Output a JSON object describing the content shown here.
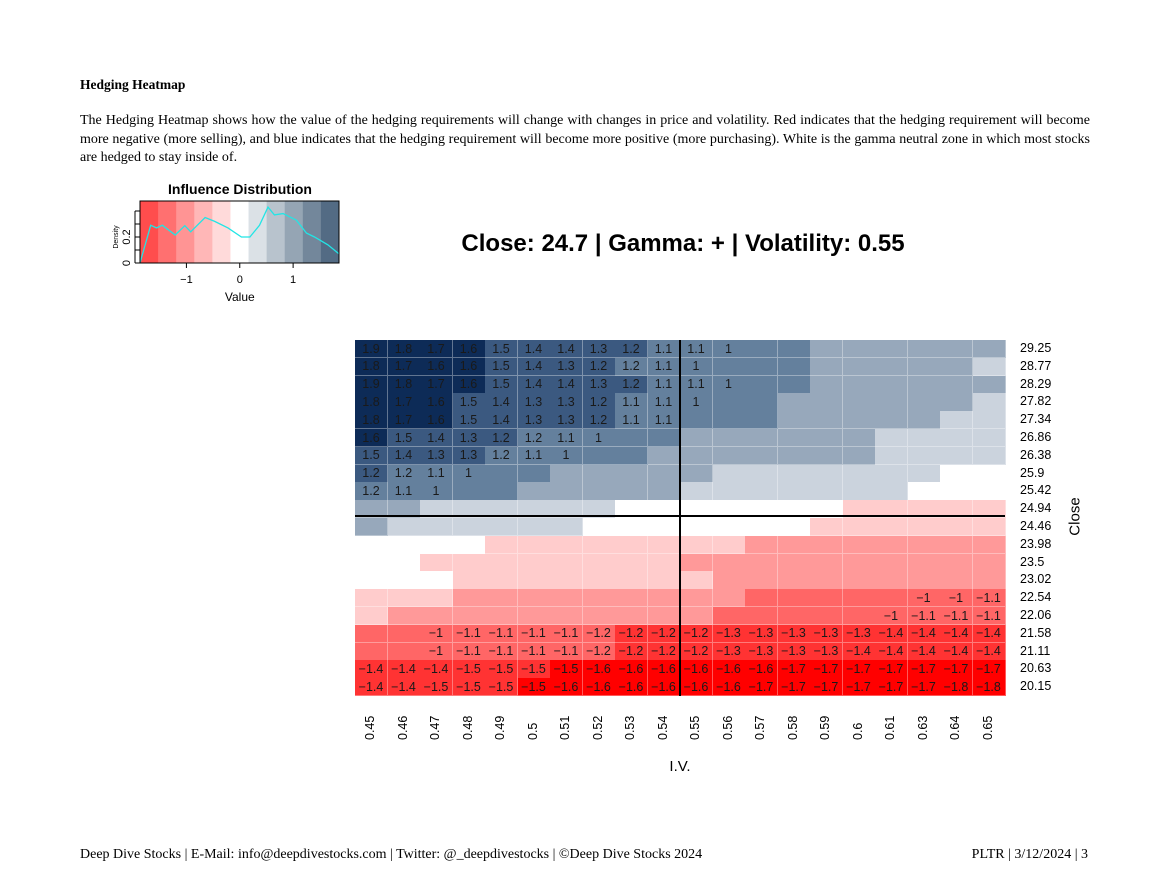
{
  "document": {
    "section_title": "Hedging Heatmap",
    "paragraph": "The Hedging Heatmap shows how the value of the hedging requirements will change with changes in price and volatility. Red indicates that the hedging requirement will become more negative (more selling), and blue indicates that the hedging requirement will become more positive (more purchasing). White is the gamma neutral zone in which most stocks are hedged to stay inside of."
  },
  "footer": {
    "left": "Deep Dive Stocks | E-Mail:  info@deepdivestocks.com | Twitter:  @_deepdivestocks | ©Deep Dive Stocks 2024",
    "right": "PLTR | 3/12/2024 | 3"
  },
  "chart_data": [
    {
      "type": "area",
      "title": "Influence Distribution",
      "xlabel": "Value",
      "ylabel": "Density",
      "xlim": [
        -1.87,
        1.86
      ],
      "ylim": [
        0,
        0.45
      ],
      "xticks": [
        "−1",
        "0",
        "1"
      ],
      "yticks": [
        "0",
        "0.2"
      ],
      "x": [
        -1.87,
        -1.67,
        -1.56,
        -1.45,
        -1.21,
        -1.03,
        -0.92,
        -0.65,
        -0.47,
        -0.22,
        0.03,
        0.19,
        0.37,
        0.53,
        0.65,
        0.81,
        1.06,
        1.25,
        1.4,
        1.65,
        1.86
      ],
      "y": [
        0.0,
        0.29,
        0.27,
        0.29,
        0.215,
        0.287,
        0.24,
        0.35,
        0.32,
        0.27,
        0.2,
        0.2,
        0.29,
        0.43,
        0.37,
        0.38,
        0.33,
        0.23,
        0.2,
        0.14,
        0.07
      ],
      "line_color": "#22e5e5",
      "band_colors": [
        "#ff4d4d",
        "#ff7070",
        "#ff9494",
        "#ffb7b7",
        "#ffdada",
        "#ffffff",
        "#dbe1e6",
        "#b8c3cd",
        "#95a5b4",
        "#73879b",
        "#536b84"
      ]
    },
    {
      "type": "heatmap",
      "title": "Close: 24.7 | Gamma: + | Volatility: 0.55",
      "xlabel": "I.V.",
      "ylabel": "Close",
      "current_close_row": "24.46",
      "current_iv_col": "0.55",
      "x": [
        "0.45",
        "0.46",
        "0.47",
        "0.48",
        "0.49",
        "0.5",
        "0.51",
        "0.52",
        "0.53",
        "0.54",
        "0.55",
        "0.56",
        "0.57",
        "0.58",
        "0.59",
        "0.6",
        "0.61",
        "0.63",
        "0.64",
        "0.65"
      ],
      "y": [
        "29.25",
        "28.77",
        "28.29",
        "27.82",
        "27.34",
        "26.86",
        "26.38",
        "25.9",
        "25.42",
        "24.94",
        "24.46",
        "23.98",
        "23.5",
        "23.02",
        "22.54",
        "22.06",
        "21.58",
        "21.11",
        "20.63",
        "20.15"
      ],
      "level_colors": {
        "5": "#0d2b57",
        "4": "#3b5980",
        "3": "#64809d",
        "2": "#97a8bb",
        "1": "#cbd3dd",
        "0": "#ffffff",
        "-1": "#ffcccc",
        "-2": "#ff9999",
        "-3": "#ff6666",
        "-4": "#ff3333",
        "-5": "#ff0000"
      },
      "levels": [
        [
          5,
          5,
          5,
          5,
          4,
          4,
          4,
          4,
          4,
          3,
          3,
          3,
          3,
          3,
          2,
          2,
          2,
          2,
          2,
          2
        ],
        [
          5,
          5,
          5,
          5,
          4,
          4,
          4,
          4,
          3,
          3,
          3,
          3,
          3,
          3,
          2,
          2,
          2,
          2,
          2,
          1
        ],
        [
          5,
          5,
          5,
          5,
          4,
          4,
          4,
          4,
          4,
          3,
          3,
          3,
          3,
          3,
          2,
          2,
          2,
          2,
          2,
          2
        ],
        [
          5,
          5,
          5,
          4,
          4,
          4,
          4,
          4,
          3,
          3,
          3,
          3,
          3,
          2,
          2,
          2,
          2,
          2,
          2,
          1
        ],
        [
          5,
          5,
          5,
          4,
          4,
          4,
          4,
          4,
          3,
          3,
          3,
          3,
          3,
          2,
          2,
          2,
          2,
          2,
          1,
          1
        ],
        [
          5,
          4,
          4,
          4,
          4,
          3,
          3,
          3,
          3,
          3,
          2,
          2,
          2,
          2,
          2,
          2,
          1,
          1,
          1,
          1
        ],
        [
          4,
          4,
          4,
          4,
          3,
          3,
          3,
          3,
          3,
          2,
          2,
          2,
          2,
          2,
          2,
          2,
          1,
          1,
          1,
          1
        ],
        [
          4,
          3,
          3,
          3,
          3,
          3,
          2,
          2,
          2,
          2,
          2,
          1,
          1,
          1,
          1,
          1,
          1,
          1,
          0,
          0
        ],
        [
          3,
          3,
          3,
          3,
          3,
          2,
          2,
          2,
          2,
          2,
          1,
          1,
          1,
          1,
          1,
          1,
          1,
          0,
          0,
          0
        ],
        [
          2,
          2,
          1,
          1,
          1,
          1,
          1,
          1,
          0,
          0,
          0,
          0,
          0,
          0,
          0,
          -1,
          -1,
          -1,
          -1,
          -1
        ],
        [
          2,
          1,
          1,
          1,
          1,
          1,
          1,
          0,
          0,
          0,
          0,
          0,
          0,
          0,
          -1,
          -1,
          -1,
          -1,
          -1,
          -1
        ],
        [
          0,
          0,
          0,
          0,
          -1,
          -1,
          -1,
          -1,
          -1,
          -1,
          -1,
          -1,
          -2,
          -2,
          -2,
          -2,
          -2,
          -2,
          -2,
          -2
        ],
        [
          0,
          0,
          -1,
          -1,
          -1,
          -1,
          -1,
          -1,
          -1,
          -1,
          -2,
          -2,
          -2,
          -2,
          -2,
          -2,
          -2,
          -2,
          -2,
          -2
        ],
        [
          0,
          0,
          0,
          -1,
          -1,
          -1,
          -1,
          -1,
          -1,
          -1,
          -1,
          -2,
          -2,
          -2,
          -2,
          -2,
          -2,
          -2,
          -2,
          -2
        ],
        [
          -1,
          -1,
          -1,
          -2,
          -2,
          -2,
          -2,
          -2,
          -2,
          -2,
          -2,
          -2,
          -3,
          -3,
          -3,
          -3,
          -3,
          -3,
          -3,
          -3
        ],
        [
          -1,
          -2,
          -2,
          -2,
          -2,
          -2,
          -2,
          -2,
          -2,
          -2,
          -2,
          -3,
          -3,
          -3,
          -3,
          -3,
          -3,
          -3,
          -3,
          -3
        ],
        [
          -3,
          -3,
          -3,
          -3,
          -3,
          -3,
          -3,
          -3,
          -4,
          -4,
          -4,
          -4,
          -4,
          -4,
          -4,
          -4,
          -4,
          -4,
          -4,
          -4
        ],
        [
          -3,
          -3,
          -3,
          -3,
          -3,
          -3,
          -3,
          -3,
          -4,
          -4,
          -4,
          -4,
          -4,
          -4,
          -4,
          -4,
          -4,
          -4,
          -4,
          -4
        ],
        [
          -4,
          -4,
          -4,
          -4,
          -4,
          -4,
          -5,
          -5,
          -5,
          -5,
          -5,
          -5,
          -5,
          -5,
          -5,
          -5,
          -5,
          -5,
          -5,
          -5
        ],
        [
          -4,
          -4,
          -4,
          -4,
          -4,
          -5,
          -5,
          -5,
          -5,
          -5,
          -5,
          -5,
          -5,
          -5,
          -5,
          -5,
          -5,
          -5,
          -5,
          -5
        ]
      ],
      "labels": [
        [
          "1.9",
          "1.8",
          "1.7",
          "1.6",
          "1.5",
          "1.4",
          "1.4",
          "1.3",
          "1.2",
          "1.1",
          "1.1",
          "1",
          "",
          "",
          "",
          "",
          "",
          "",
          "",
          ""
        ],
        [
          "1.8",
          "1.7",
          "1.6",
          "1.6",
          "1.5",
          "1.4",
          "1.3",
          "1.2",
          "1.2",
          "1.1",
          "1",
          "",
          "",
          "",
          "",
          "",
          "",
          "",
          "",
          ""
        ],
        [
          "1.9",
          "1.8",
          "1.7",
          "1.6",
          "1.5",
          "1.4",
          "1.4",
          "1.3",
          "1.2",
          "1.1",
          "1.1",
          "1",
          "",
          "",
          "",
          "",
          "",
          "",
          "",
          ""
        ],
        [
          "1.8",
          "1.7",
          "1.6",
          "1.5",
          "1.4",
          "1.3",
          "1.3",
          "1.2",
          "1.1",
          "1.1",
          "1",
          "",
          "",
          "",
          "",
          "",
          "",
          "",
          "",
          ""
        ],
        [
          "1.8",
          "1.7",
          "1.6",
          "1.5",
          "1.4",
          "1.3",
          "1.3",
          "1.2",
          "1.1",
          "1.1",
          "",
          "",
          "",
          "",
          "",
          "",
          "",
          "",
          "",
          ""
        ],
        [
          "1.6",
          "1.5",
          "1.4",
          "1.3",
          "1.2",
          "1.2",
          "1.1",
          "1",
          "",
          "",
          "",
          "",
          "",
          "",
          "",
          "",
          "",
          "",
          "",
          ""
        ],
        [
          "1.5",
          "1.4",
          "1.3",
          "1.3",
          "1.2",
          "1.1",
          "1",
          "",
          "",
          "",
          "",
          "",
          "",
          "",
          "",
          "",
          "",
          "",
          "",
          ""
        ],
        [
          "1.2",
          "1.2",
          "1.1",
          "1",
          "",
          "",
          "",
          "",
          "",
          "",
          "",
          "",
          "",
          "",
          "",
          "",
          "",
          "",
          "",
          ""
        ],
        [
          "1.2",
          "1.1",
          "1",
          "",
          "",
          "",
          "",
          "",
          "",
          "",
          "",
          "",
          "",
          "",
          "",
          "",
          "",
          "",
          "",
          ""
        ],
        [
          "",
          "",
          "",
          "",
          "",
          "",
          "",
          "",
          "",
          "",
          "",
          "",
          "",
          "",
          "",
          "",
          "",
          "",
          "",
          ""
        ],
        [
          "",
          "",
          "",
          "",
          "",
          "",
          "",
          "",
          "",
          "",
          "",
          "",
          "",
          "",
          "",
          "",
          "",
          "",
          "",
          ""
        ],
        [
          "",
          "",
          "",
          "",
          "",
          "",
          "",
          "",
          "",
          "",
          "",
          "",
          "",
          "",
          "",
          "",
          "",
          "",
          "",
          ""
        ],
        [
          "",
          "",
          "",
          "",
          "",
          "",
          "",
          "",
          "",
          "",
          "",
          "",
          "",
          "",
          "",
          "",
          "",
          "",
          "",
          ""
        ],
        [
          "",
          "",
          "",
          "",
          "",
          "",
          "",
          "",
          "",
          "",
          "",
          "",
          "",
          "",
          "",
          "",
          "",
          "",
          "",
          ""
        ],
        [
          "",
          "",
          "",
          "",
          "",
          "",
          "",
          "",
          "",
          "",
          "",
          "",
          "",
          "",
          "",
          "",
          "",
          "−1",
          "−1",
          "−1.1"
        ],
        [
          "",
          "",
          "",
          "",
          "",
          "",
          "",
          "",
          "",
          "",
          "",
          "",
          "",
          "",
          "",
          "",
          "−1",
          "−1.1",
          "−1.1",
          "−1.1"
        ],
        [
          "",
          "",
          "−1",
          "−1.1",
          "−1.1",
          "−1.1",
          "−1.1",
          "−1.2",
          "−1.2",
          "−1.2",
          "−1.2",
          "−1.3",
          "−1.3",
          "−1.3",
          "−1.3",
          "−1.3",
          "−1.4",
          "−1.4",
          "−1.4",
          "−1.4"
        ],
        [
          "",
          "",
          "−1",
          "−1.1",
          "−1.1",
          "−1.1",
          "−1.1",
          "−1.2",
          "−1.2",
          "−1.2",
          "−1.2",
          "−1.3",
          "−1.3",
          "−1.3",
          "−1.3",
          "−1.4",
          "−1.4",
          "−1.4",
          "−1.4",
          "−1.4"
        ],
        [
          "−1.4",
          "−1.4",
          "−1.4",
          "−1.5",
          "−1.5",
          "−1.5",
          "−1.5",
          "−1.6",
          "−1.6",
          "−1.6",
          "−1.6",
          "−1.6",
          "−1.6",
          "−1.7",
          "−1.7",
          "−1.7",
          "−1.7",
          "−1.7",
          "−1.7",
          "−1.7"
        ],
        [
          "−1.4",
          "−1.4",
          "−1.5",
          "−1.5",
          "−1.5",
          "−1.5",
          "−1.6",
          "−1.6",
          "−1.6",
          "−1.6",
          "−1.6",
          "−1.6",
          "−1.7",
          "−1.7",
          "−1.7",
          "−1.7",
          "−1.7",
          "−1.7",
          "−1.8",
          "−1.8"
        ]
      ]
    }
  ]
}
